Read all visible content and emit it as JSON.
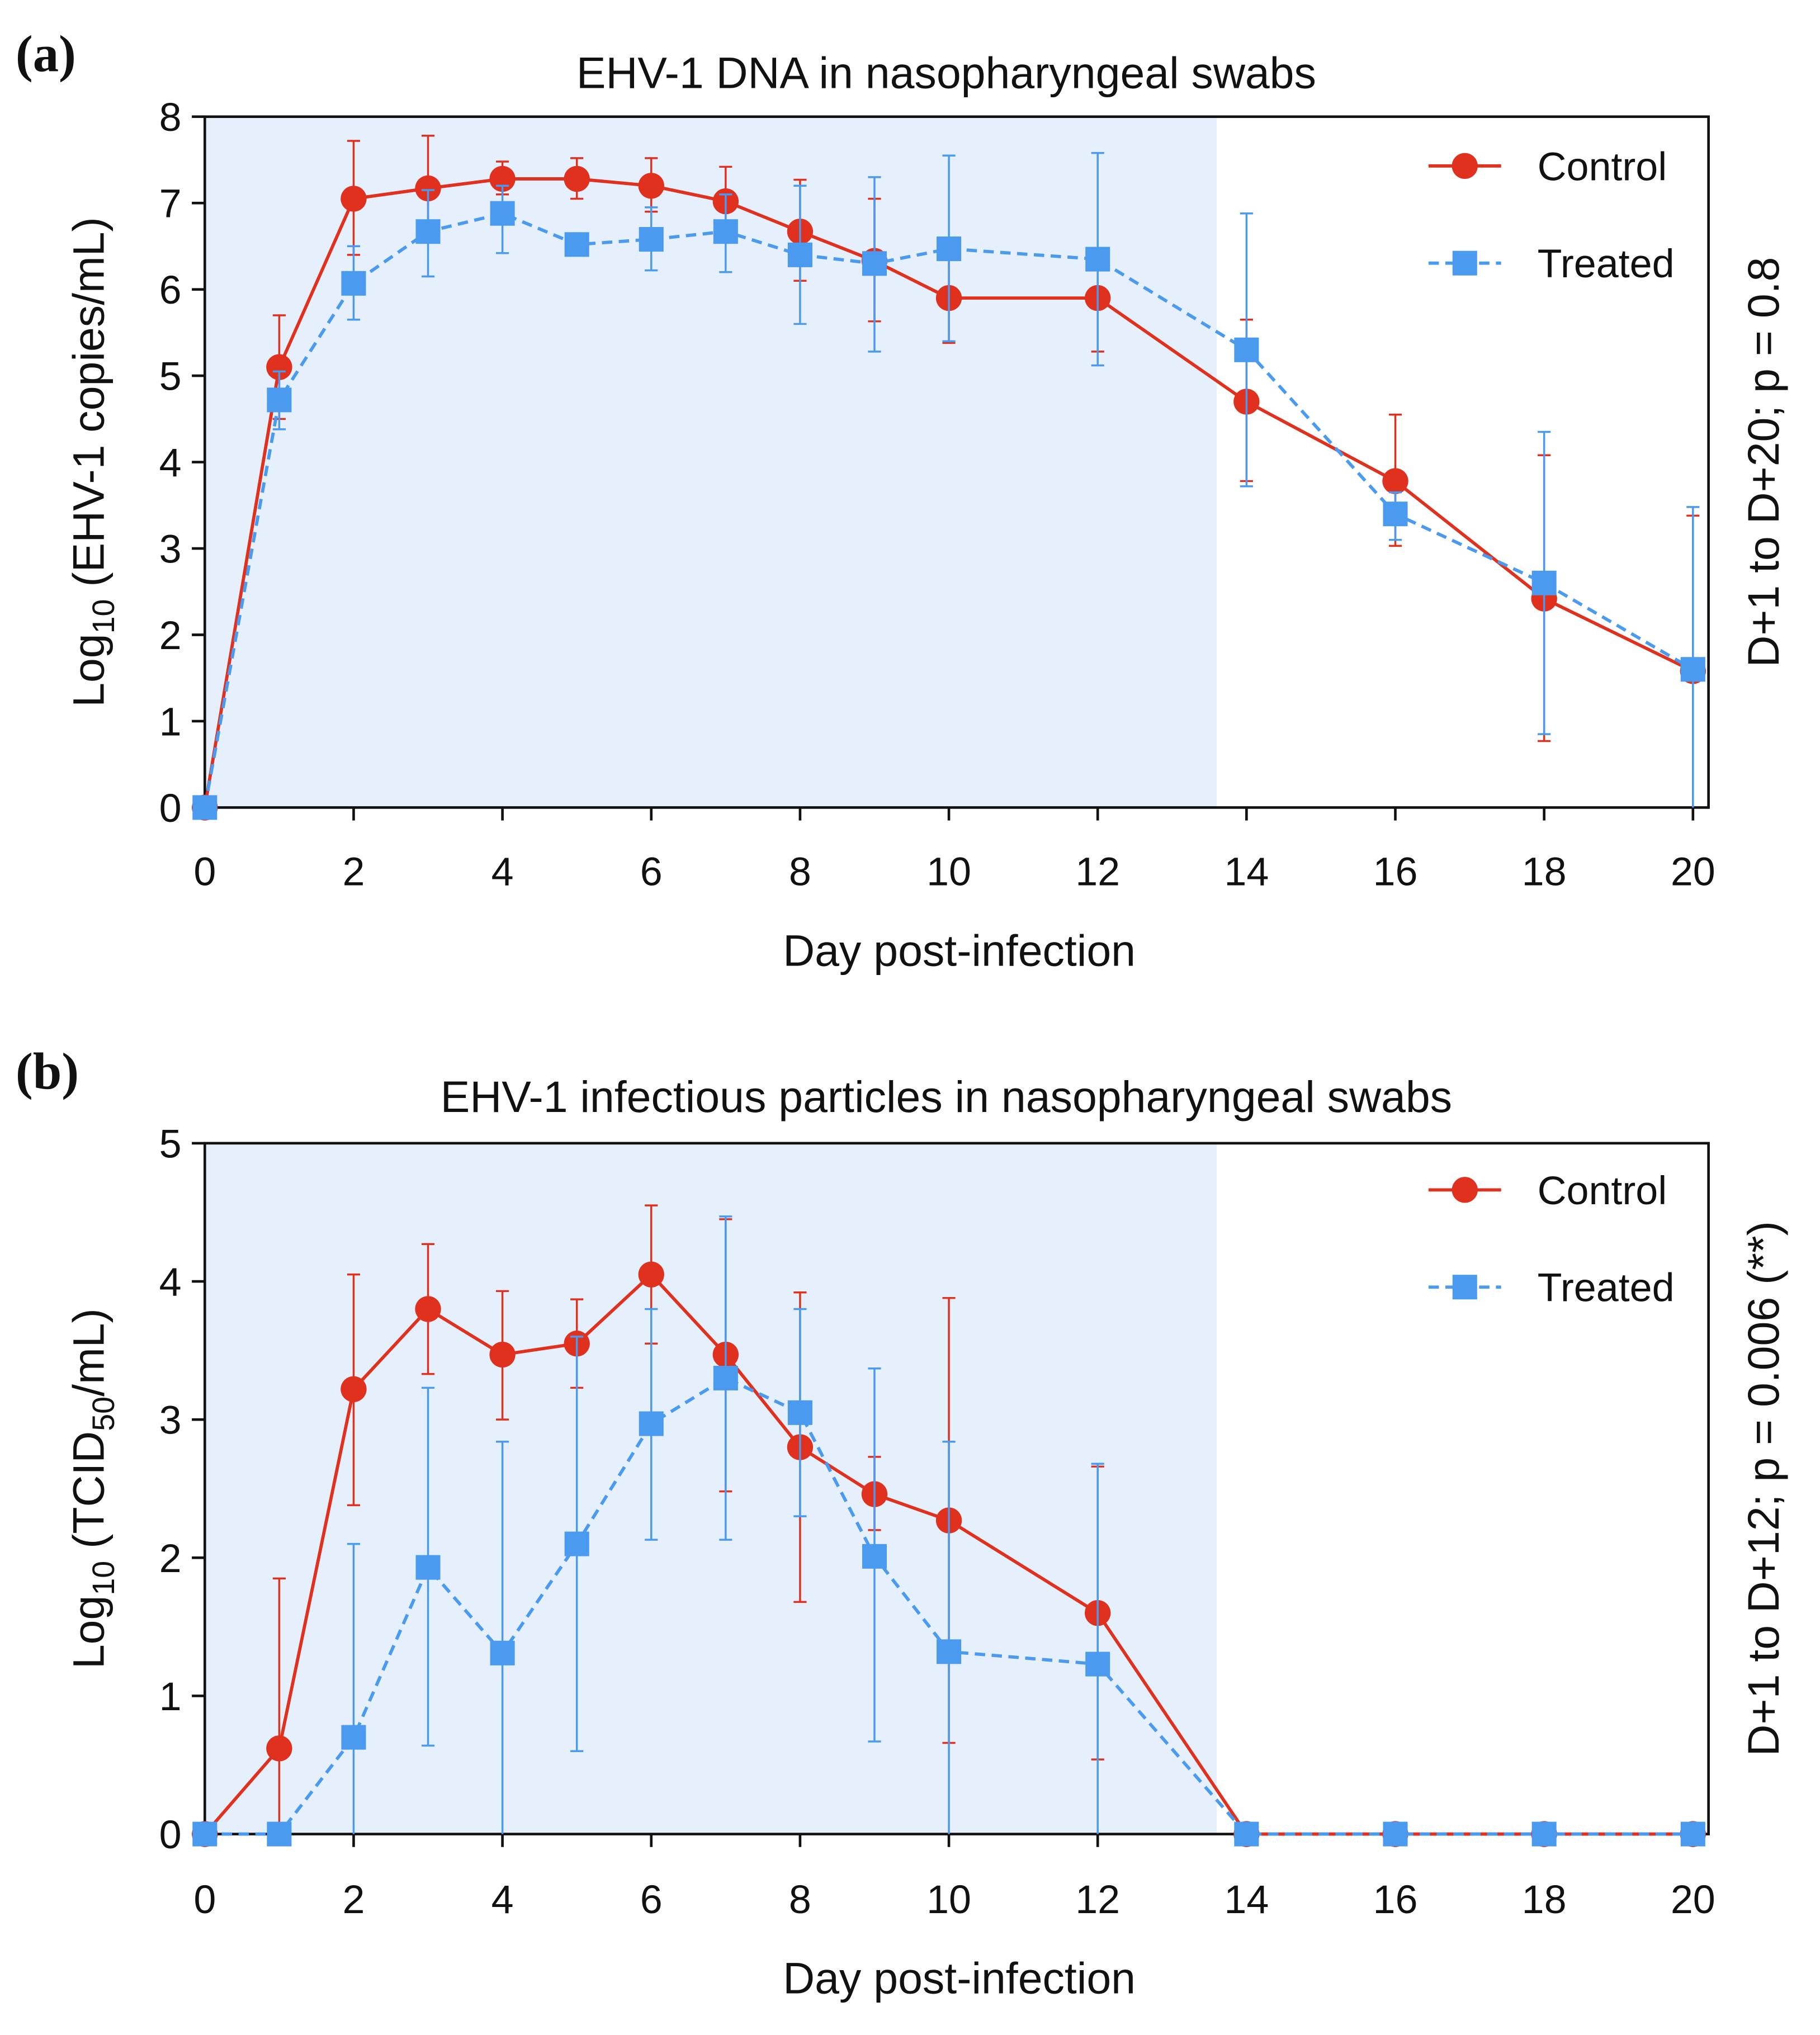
{
  "colors": {
    "control": "#e0301e",
    "treated": "#4a9af0",
    "shade": "#e6f0fc"
  },
  "chart_data": [
    {
      "type": "line",
      "panel": "(a)",
      "title": "EHV-1 DNA in nasopharyngeal swabs",
      "xlabel": "Day post-infection",
      "ylabel_main": "Log",
      "ylabel_sub": "10",
      "ylabel_rest": " (EHV-1 copies/mL)",
      "right_label": "D+1 to D+20; p = 0.8",
      "xlim": [
        0,
        20.3
      ],
      "ylim": [
        0,
        8
      ],
      "xticks": [
        "0",
        "2",
        "4",
        "6",
        "8",
        "10",
        "12",
        "14",
        "16",
        "18",
        "20"
      ],
      "yticks": [
        "0",
        "1",
        "2",
        "3",
        "4",
        "5",
        "6",
        "7",
        "8"
      ],
      "shaded_until_day": 13.6,
      "legend_position": "top-right",
      "x": [
        0,
        1,
        2,
        3,
        4,
        5,
        6,
        7,
        8,
        9,
        10,
        12,
        14,
        16,
        18,
        20
      ],
      "series": [
        {
          "name": "Control",
          "marker": "circle",
          "line": "solid",
          "values": [
            0,
            5.1,
            7.05,
            7.17,
            7.28,
            7.28,
            7.2,
            7.02,
            6.67,
            6.33,
            5.9,
            5.9,
            4.7,
            3.78,
            2.42,
            1.58
          ],
          "err_high": [
            0,
            5.7,
            7.72,
            7.78,
            7.48,
            7.52,
            7.52,
            7.42,
            7.27,
            7.05,
            6.4,
            6.45,
            5.65,
            4.55,
            4.08,
            3.38
          ],
          "err_low": [
            0,
            4.5,
            6.4,
            6.55,
            7.1,
            7.05,
            6.9,
            6.6,
            6.1,
            5.63,
            5.38,
            5.28,
            3.78,
            3.03,
            0.77,
            0
          ]
        },
        {
          "name": "Treated",
          "marker": "square",
          "line": "dashed",
          "values": [
            0,
            4.72,
            6.07,
            6.67,
            6.88,
            6.52,
            6.58,
            6.67,
            6.4,
            6.3,
            6.47,
            6.35,
            5.3,
            3.4,
            2.6,
            1.6
          ],
          "err_high": [
            0,
            5.05,
            6.5,
            7.15,
            7.2,
            6.6,
            6.95,
            7.1,
            7.2,
            7.3,
            7.55,
            7.58,
            6.88,
            3.65,
            4.35,
            3.48
          ],
          "err_low": [
            0,
            4.38,
            5.65,
            6.15,
            6.42,
            6.45,
            6.22,
            6.2,
            5.6,
            5.28,
            5.4,
            5.12,
            3.72,
            3.1,
            0.85,
            0
          ]
        }
      ]
    },
    {
      "type": "line",
      "panel": "(b)",
      "title": "EHV-1 infectious particles in nasopharyngeal swabs",
      "xlabel": "Day post-infection",
      "ylabel_main": "Log",
      "ylabel_sub": "10",
      "ylabel_rest": " (TCID",
      "ylabel_sub2": "50",
      "ylabel_end": "/mL)",
      "right_label": "D+1 to D+12; p = 0.006 (**)",
      "xlim": [
        0,
        20.3
      ],
      "ylim": [
        0,
        5
      ],
      "xticks": [
        "0",
        "2",
        "4",
        "6",
        "8",
        "10",
        "12",
        "14",
        "16",
        "18",
        "20"
      ],
      "yticks": [
        "0",
        "1",
        "2",
        "3",
        "4",
        "5"
      ],
      "shaded_until_day": 13.6,
      "legend_position": "top-right",
      "x": [
        0,
        1,
        2,
        3,
        4,
        5,
        6,
        7,
        8,
        9,
        10,
        12,
        14,
        16,
        18,
        20
      ],
      "series": [
        {
          "name": "Control",
          "marker": "circle",
          "line": "solid",
          "values": [
            0,
            0.62,
            3.22,
            3.8,
            3.47,
            3.55,
            4.05,
            3.47,
            2.8,
            2.46,
            2.27,
            1.6,
            0,
            0,
            0,
            0
          ],
          "err_high": [
            0,
            1.85,
            4.05,
            4.27,
            3.93,
            3.87,
            4.55,
            4.45,
            3.92,
            2.73,
            3.88,
            2.66,
            0,
            0,
            0,
            0
          ],
          "err_low": [
            0,
            0,
            2.38,
            3.33,
            3.0,
            3.23,
            3.55,
            2.48,
            1.68,
            2.2,
            0.66,
            0.54,
            0,
            0,
            0,
            0
          ]
        },
        {
          "name": "Treated",
          "marker": "square",
          "line": "dashed",
          "values": [
            0,
            0,
            0.7,
            1.93,
            1.31,
            2.1,
            2.97,
            3.3,
            3.05,
            2.01,
            1.32,
            1.23,
            0,
            0,
            0,
            0
          ],
          "err_high": [
            0,
            0,
            2.1,
            3.23,
            2.84,
            3.6,
            3.8,
            4.47,
            3.8,
            3.37,
            2.84,
            2.68,
            0,
            0,
            0,
            0
          ],
          "err_low": [
            0,
            0,
            0,
            0.64,
            0,
            0.6,
            2.13,
            2.13,
            2.3,
            0.67,
            0,
            0,
            0,
            0,
            0,
            0
          ]
        }
      ]
    }
  ]
}
